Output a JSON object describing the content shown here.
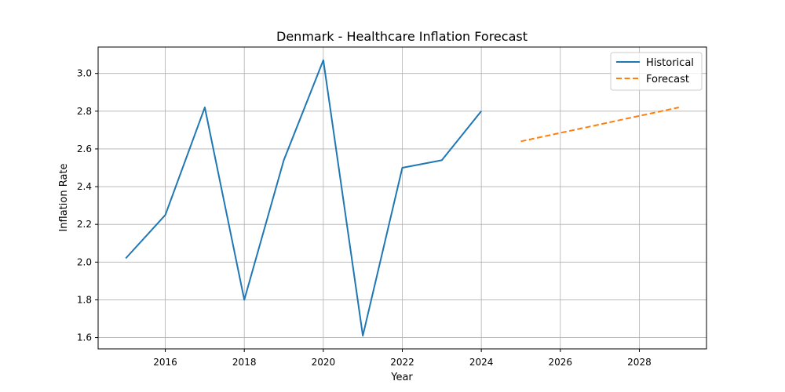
{
  "chart_data": {
    "type": "line",
    "title": "Denmark - Healthcare Inflation Forecast",
    "xlabel": "Year",
    "ylabel": "Inflation Rate",
    "xlim": [
      2014.3,
      2029.7
    ],
    "ylim": [
      1.54,
      3.14
    ],
    "xticks": [
      2016,
      2018,
      2020,
      2022,
      2024,
      2026,
      2028
    ],
    "yticks": [
      1.6,
      1.8,
      2.0,
      2.2,
      2.4,
      2.6,
      2.8,
      3.0
    ],
    "grid": true,
    "legend_position": "top-right",
    "series": [
      {
        "name": "Historical",
        "color": "#1f77b4",
        "style": "solid",
        "x": [
          2015,
          2016,
          2017,
          2018,
          2019,
          2020,
          2021,
          2022,
          2023,
          2024
        ],
        "y": [
          2.02,
          2.25,
          2.82,
          1.8,
          2.54,
          3.07,
          1.61,
          2.5,
          2.54,
          2.8
        ]
      },
      {
        "name": "Forecast",
        "color": "#ff7f0e",
        "style": "dashed",
        "x": [
          2025,
          2026,
          2027,
          2028,
          2029
        ],
        "y": [
          2.64,
          2.685,
          2.73,
          2.775,
          2.82
        ]
      }
    ]
  }
}
